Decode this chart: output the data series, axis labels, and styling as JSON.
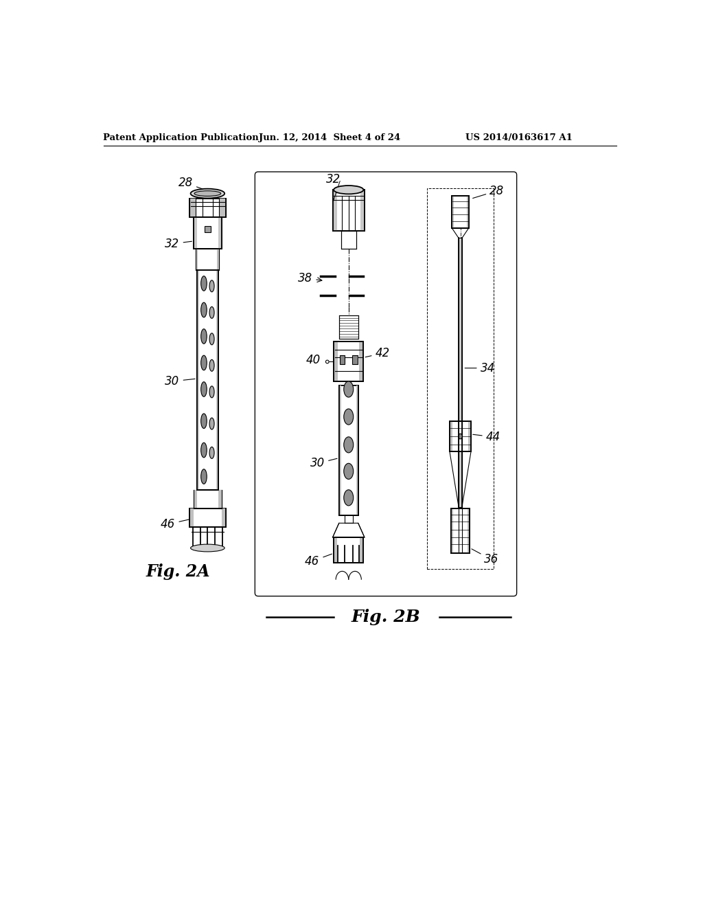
{
  "bg_color": "#ffffff",
  "header_left": "Patent Application Publication",
  "header_mid": "Jun. 12, 2014  Sheet 4 of 24",
  "header_right": "US 2014/0163617 A1",
  "fig2a_label": "Fig. 2A",
  "fig2b_label": "Fig. 2B"
}
